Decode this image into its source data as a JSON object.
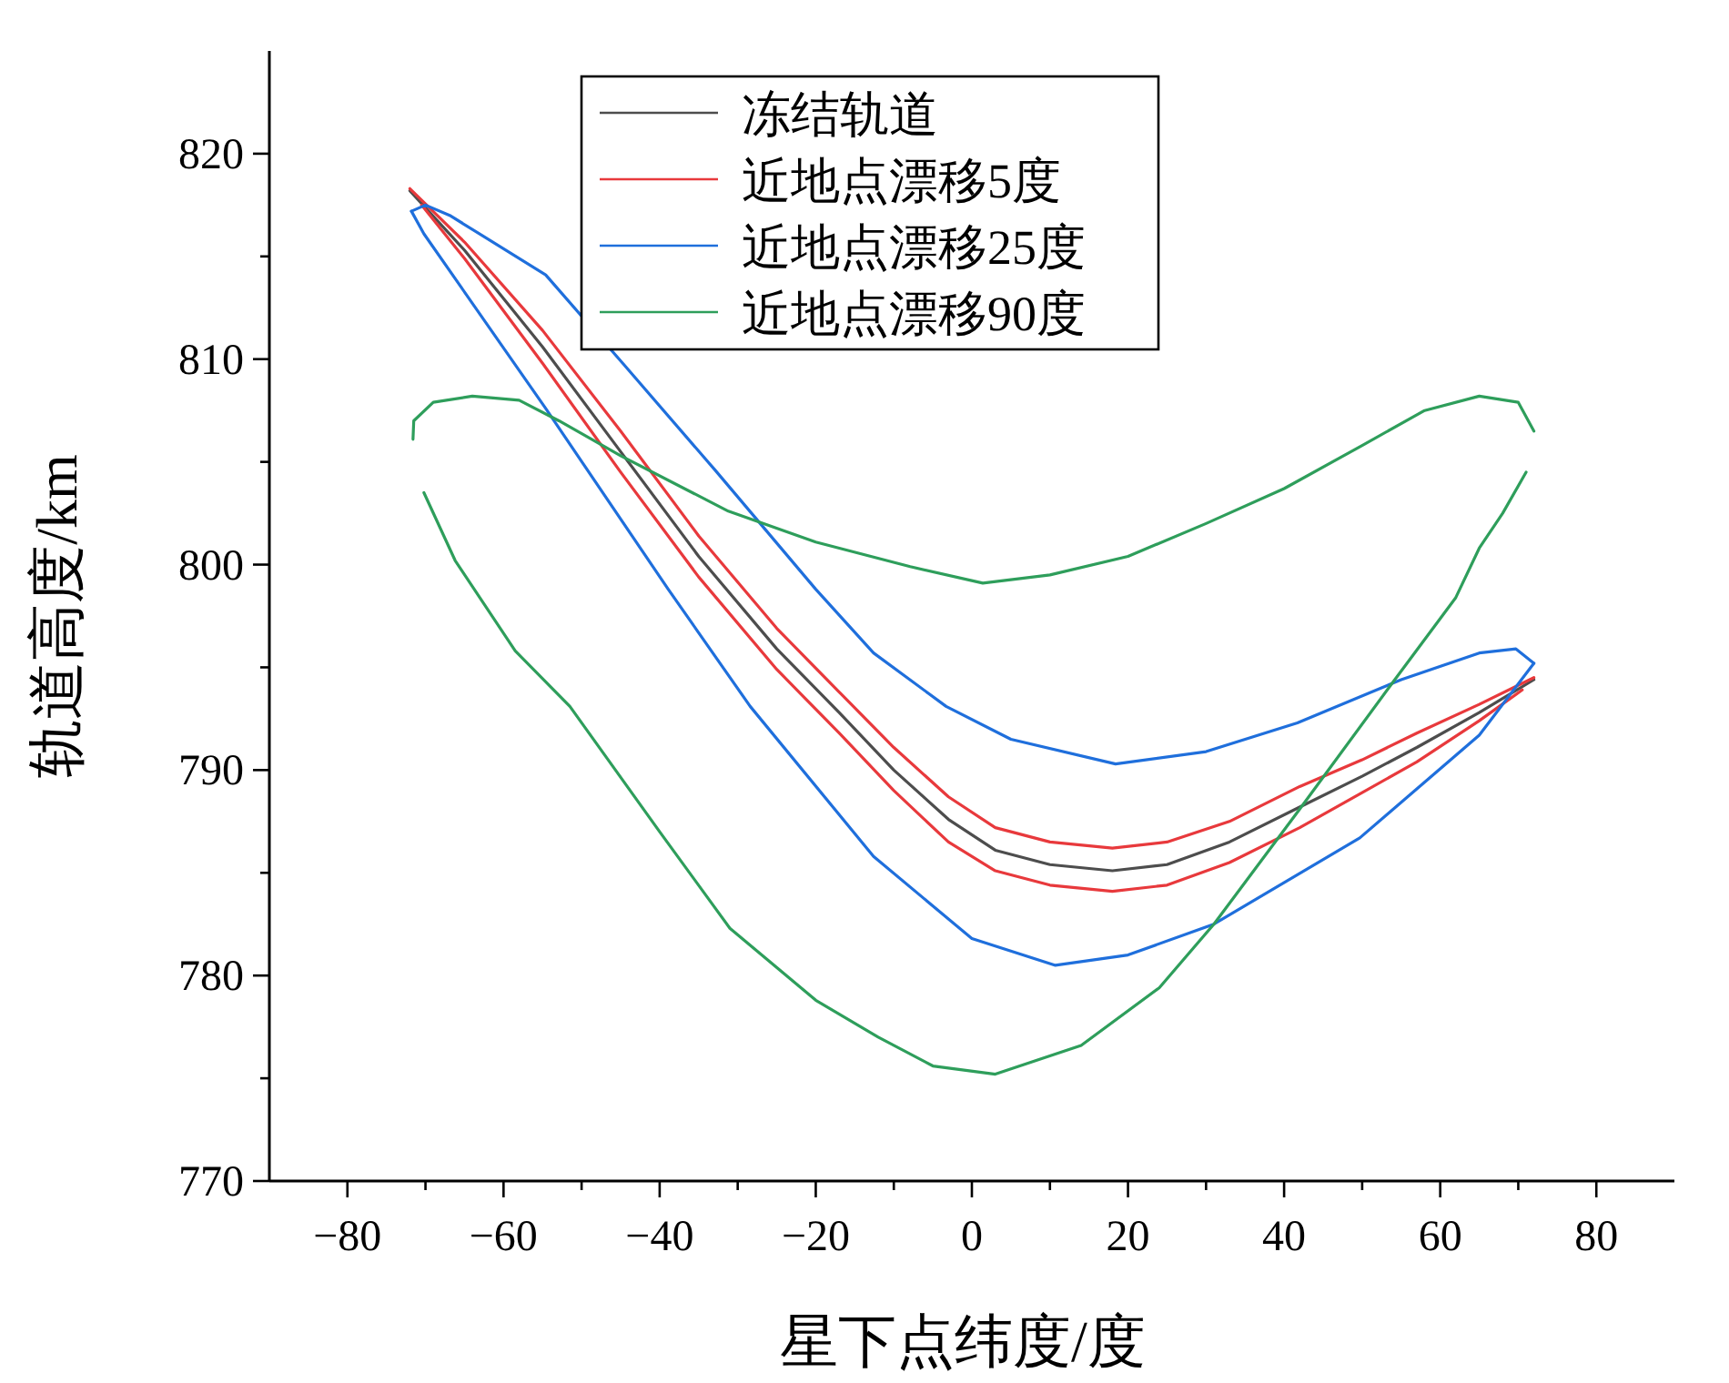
{
  "chart_data": {
    "type": "line",
    "xlabel": "星下点纬度/度",
    "ylabel": "轨道高度/km",
    "xlim": [
      -90,
      90
    ],
    "ylim": [
      770,
      825
    ],
    "xticks": [
      -80,
      {
        "value": -70,
        "label": null
      },
      -60,
      {
        "value": -50,
        "label": null
      },
      -40,
      {
        "value": -30,
        "label": null
      },
      -20,
      {
        "value": -10,
        "label": null
      },
      0,
      {
        "value": 10,
        "label": null
      },
      20,
      {
        "value": 30,
        "label": null
      },
      40,
      {
        "value": 50,
        "label": null
      },
      60,
      {
        "value": 70,
        "label": null
      },
      80
    ],
    "yticks": [
      770,
      {
        "value": 775,
        "label": null
      },
      780,
      {
        "value": 785,
        "label": null
      },
      790,
      {
        "value": 795,
        "label": null
      },
      800,
      {
        "value": 805,
        "label": null
      },
      810,
      {
        "value": 815,
        "label": null
      },
      820
    ],
    "legend": "top",
    "grid": false,
    "marker": "none",
    "line_style": "solid",
    "series": [
      {
        "name": "冻结轨道",
        "color": "#4d4d4d",
        "x": [
          -72,
          -65,
          -55,
          -45,
          -35,
          -25,
          -17,
          -10,
          -3,
          3,
          10,
          18,
          25,
          33,
          42,
          50,
          57,
          65,
          72
        ],
        "values": [
          818.2,
          815.3,
          810.6,
          805.5,
          800.4,
          795.9,
          792.8,
          790,
          787.6,
          786.1,
          785.4,
          785.1,
          785.4,
          786.5,
          788.2,
          789.7,
          791.1,
          792.8,
          794.4
        ]
      },
      {
        "name": "近地点漂移5度",
        "color": "#e8393c",
        "x": [
          -72,
          -65,
          -55,
          -45,
          -35,
          -25,
          -17,
          -10,
          -3,
          3,
          10,
          18,
          25,
          33,
          42,
          50,
          57,
          65,
          72
        ],
        "values": [
          818.3,
          815.7,
          811.4,
          806.5,
          801.4,
          796.9,
          793.8,
          791.1,
          788.7,
          787.2,
          786.5,
          786.2,
          786.5,
          787.5,
          789.2,
          790.5,
          791.8,
          793.2,
          794.5
        ]
      },
      {
        "color": "#e8393c",
        "x": [
          -70.5,
          -65,
          -55,
          -45,
          -35,
          -25,
          -17,
          -10,
          -3,
          3,
          10,
          18,
          25,
          33,
          42,
          50,
          57,
          65,
          70.5
        ],
        "values": [
          817.5,
          814.9,
          809.8,
          804.5,
          799.4,
          794.9,
          791.8,
          789,
          786.5,
          785.1,
          784.4,
          784.1,
          784.4,
          785.5,
          787.2,
          788.9,
          790.4,
          792.4,
          793.9
        ]
      },
      {
        "name": "近地点漂移25度",
        "color": "#1f6fdc",
        "x": [
          -71.8,
          -70,
          -66.9,
          -54.6,
          -44.5,
          -32.9,
          -20,
          -12.6,
          -3.3,
          5,
          18.4,
          30,
          41.7,
          55,
          65,
          69.7,
          72
        ],
        "values": [
          817.2,
          817.5,
          817,
          814.1,
          809.7,
          804.6,
          798.8,
          795.7,
          793.1,
          791.5,
          790.3,
          790.9,
          792.3,
          794.4,
          795.7,
          795.9,
          795.2
        ]
      },
      {
        "color": "#1f6fdc",
        "x": [
          -71.8,
          -70.2,
          -54.6,
          -38.9,
          -28.4,
          -12.6,
          0,
          10.7,
          20,
          31,
          49.7,
          65,
          72
        ],
        "values": [
          817.2,
          816.1,
          807.6,
          798.8,
          793.1,
          785.8,
          781.8,
          780.5,
          781,
          782.5,
          786.7,
          791.7,
          795.2
        ]
      },
      {
        "name": "近地点漂移90度",
        "color": "#2e9e5b",
        "x": [
          -71.6,
          -71.5,
          -69,
          -64,
          -58,
          -52.9,
          -45,
          -31.2,
          -20,
          -7.9,
          1.4,
          10,
          20,
          30,
          40,
          50,
          58,
          65,
          70,
          72
        ],
        "values": [
          806.1,
          807,
          807.9,
          808.2,
          808,
          807,
          805.3,
          802.6,
          801.1,
          799.9,
          799.1,
          799.5,
          800.4,
          802,
          803.7,
          805.8,
          807.5,
          808.2,
          807.9,
          806.5
        ]
      },
      {
        "color": "#2e9e5b",
        "x": [
          -70.2,
          -66.2,
          -58.5,
          -51.5,
          -40,
          -31,
          -20,
          -12,
          -5,
          3,
          14,
          24,
          31,
          42,
          53.4,
          62,
          65,
          68,
          71
        ],
        "values": [
          803.5,
          800.2,
          795.8,
          793.1,
          787,
          782.3,
          778.8,
          777,
          775.6,
          775.2,
          776.6,
          779.4,
          782.5,
          788.1,
          794,
          798.4,
          800.8,
          802.5,
          804.5
        ]
      }
    ]
  }
}
